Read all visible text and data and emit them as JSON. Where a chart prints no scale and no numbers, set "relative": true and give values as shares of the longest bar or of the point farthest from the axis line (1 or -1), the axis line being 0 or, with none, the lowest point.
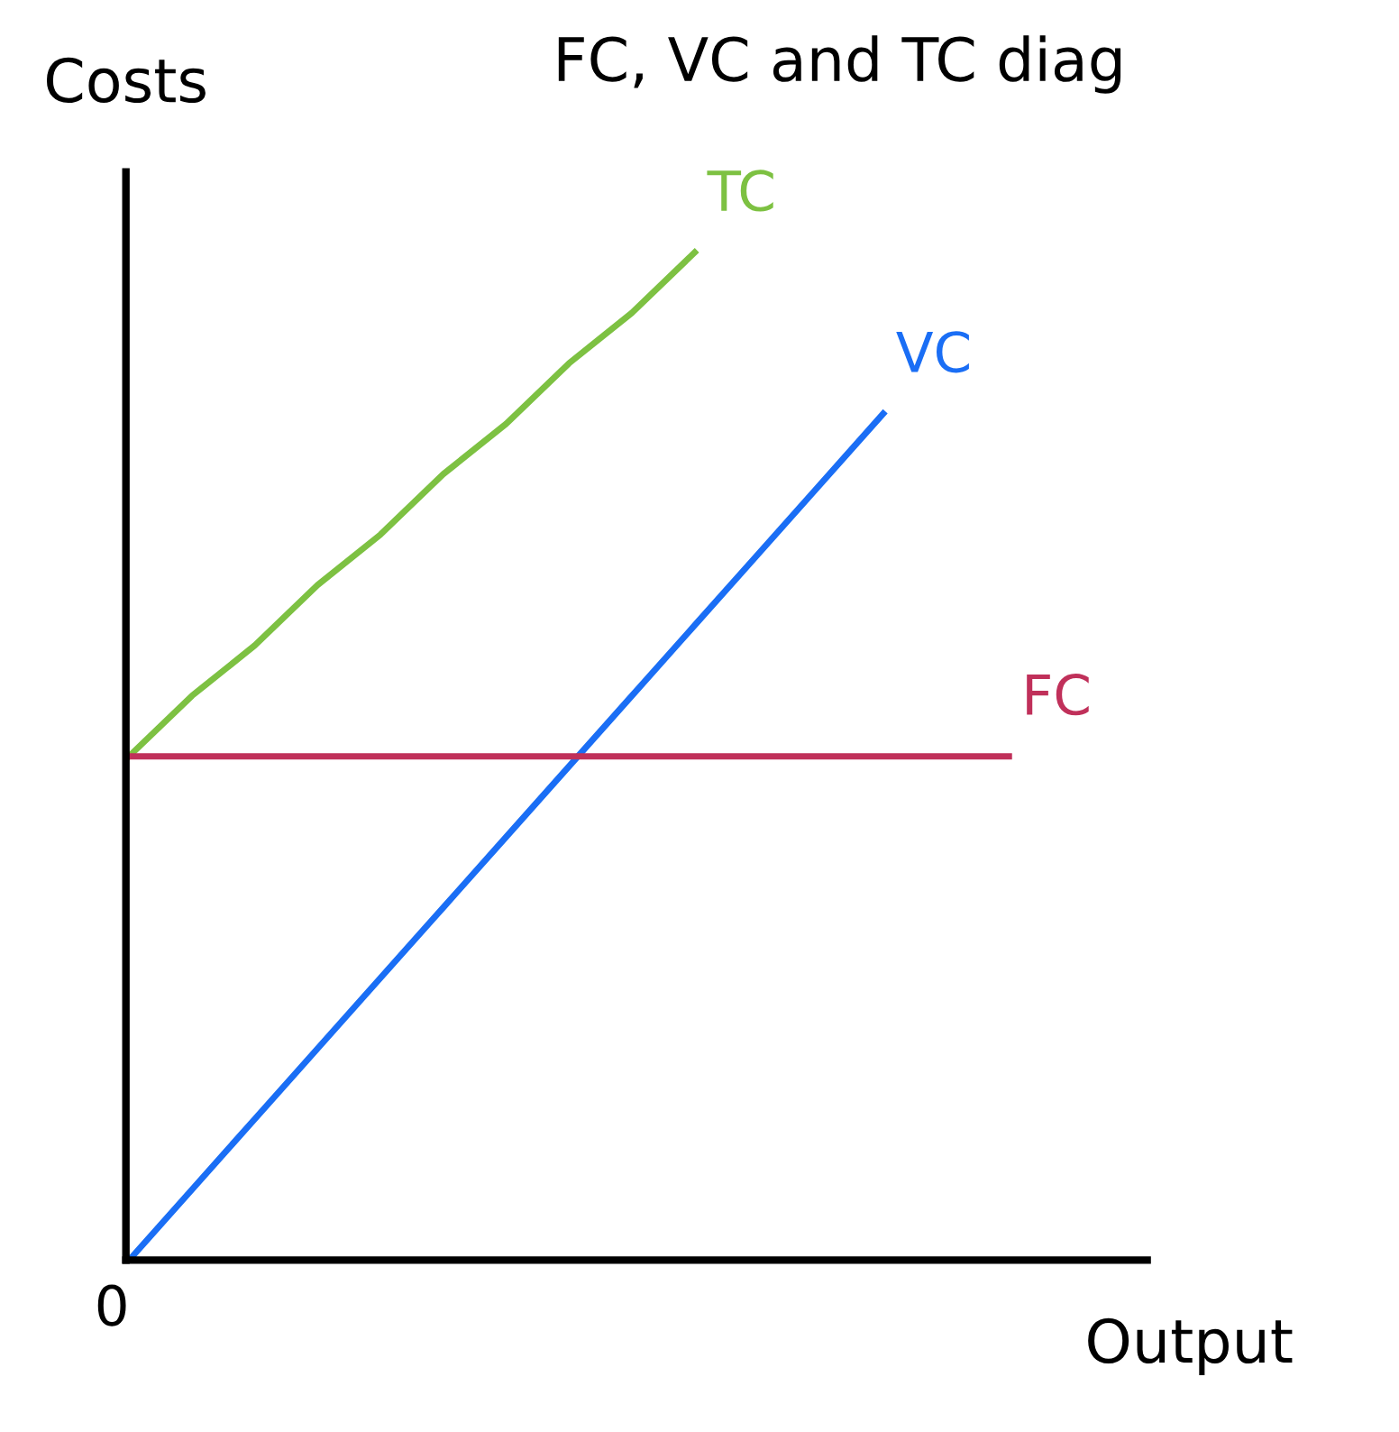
{
  "chart_data": {
    "type": "line",
    "relative": true,
    "title": "FC, VC and TC diag",
    "xlabel": "Output",
    "ylabel": "Costs",
    "annotations": [
      "0"
    ],
    "categories": [
      null,
      null,
      null,
      null,
      null,
      null,
      null,
      null,
      null,
      null,
      null,
      null,
      null,
      null,
      null
    ],
    "series": [
      {
        "name": "TC",
        "color": "#7dc142",
        "values": [
          0.5,
          0.56,
          0.61,
          0.67,
          0.72,
          0.78,
          0.83,
          0.89,
          0.94,
          1.0,
          null,
          null,
          null,
          null,
          null
        ]
      },
      {
        "name": "VC",
        "color": "#1a6ef5",
        "values": [
          0,
          0.07,
          0.14,
          0.21,
          0.28,
          0.35,
          0.42,
          0.49,
          0.56,
          0.63,
          0.7,
          0.77,
          0.84,
          null,
          null
        ]
      },
      {
        "name": "FC",
        "color": "#c0305a",
        "values": [
          0.5,
          0.5,
          0.5,
          0.5,
          0.5,
          0.5,
          0.5,
          0.5,
          0.5,
          0.5,
          0.5,
          0.5,
          0.5,
          0.5,
          0.5
        ]
      }
    ],
    "marker": "none",
    "line_style": "solid"
  }
}
